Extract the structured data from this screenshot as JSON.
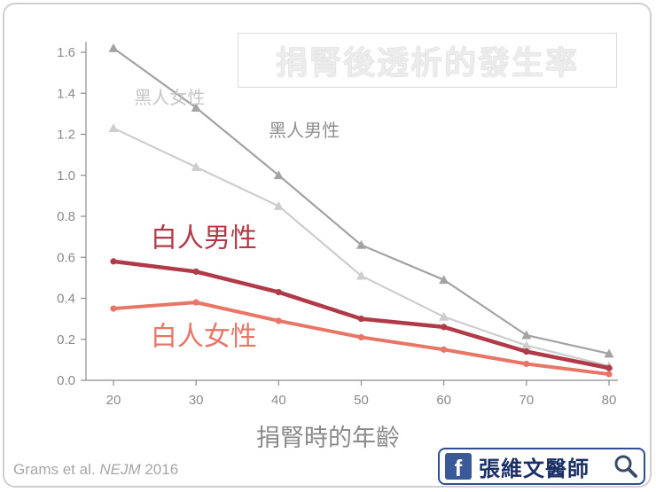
{
  "title": "捐腎後透析的發生率",
  "xlabel": "捐腎時的年齡",
  "credit": {
    "authors": "Grams et al.",
    "journal": "NEJM",
    "year": "2016"
  },
  "badge": {
    "text": "張維文醫師",
    "fb_glyph": "f",
    "icon": "magnifier-icon"
  },
  "chart_data": {
    "type": "line",
    "x": [
      20,
      30,
      40,
      50,
      60,
      70,
      80
    ],
    "xlim": [
      20,
      80
    ],
    "ylim": [
      0,
      1.6
    ],
    "xticks": [
      "20",
      "30",
      "40",
      "50",
      "60",
      "70",
      "80"
    ],
    "yticks": [
      "0.0",
      "0.2",
      "0.4",
      "0.6",
      "0.8",
      "1.0",
      "1.2",
      "1.4",
      "1.6"
    ],
    "grid": false,
    "series": [
      {
        "name": "黑人男性",
        "values": [
          1.62,
          1.33,
          1.0,
          0.66,
          0.49,
          0.22,
          0.13
        ],
        "color": "#a3a3a3",
        "marker": "triangle",
        "width": 2.2
      },
      {
        "name": "黑人女性",
        "values": [
          1.23,
          1.04,
          0.85,
          0.51,
          0.31,
          0.17,
          0.07
        ],
        "color": "#cdcdcd",
        "marker": "triangle",
        "width": 2.2
      },
      {
        "name": "白人男性",
        "values": [
          0.58,
          0.53,
          0.43,
          0.3,
          0.26,
          0.14,
          0.06
        ],
        "color": "#b03a48",
        "marker": "circle",
        "width": 4.5
      },
      {
        "name": "白人女性",
        "values": [
          0.35,
          0.38,
          0.29,
          0.21,
          0.15,
          0.08,
          0.03
        ],
        "color": "#e87565",
        "marker": "circle",
        "width": 4
      }
    ],
    "labels": [
      {
        "series": 1,
        "text": "黑人女性",
        "x": 22.5,
        "y": 1.35,
        "color": "#c6c6c6",
        "size": 20
      },
      {
        "series": 0,
        "text": "黑人男性",
        "x": 38.8,
        "y": 1.19,
        "color": "#8f8f8f",
        "size": 20
      },
      {
        "series": 2,
        "text": "白人男性",
        "x": 24.5,
        "y": 0.65,
        "color": "#b03a48",
        "size": 30
      },
      {
        "series": 3,
        "text": "白人女性",
        "x": 24.5,
        "y": 0.17,
        "color": "#e87565",
        "size": 30
      }
    ]
  }
}
